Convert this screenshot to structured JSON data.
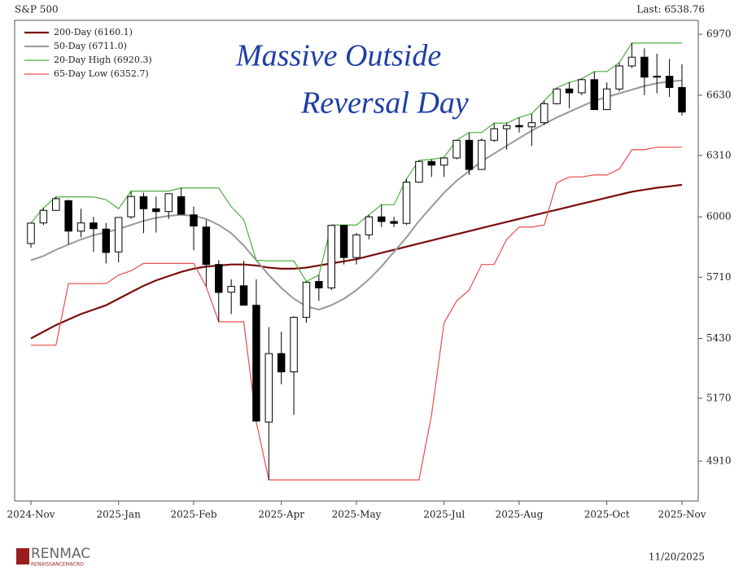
{
  "chart_data": {
    "type": "candlestick",
    "title": "S&P 500",
    "last_label": "Last: 6538.76",
    "log_scale": true,
    "ylim": [
      4752,
      7050
    ],
    "yticks": [
      4910,
      5170,
      5430,
      5710,
      6000,
      6310,
      6630,
      6970
    ],
    "categories": [
      "2024-Nov",
      null,
      null,
      null,
      null,
      null,
      null,
      "2025-Jan",
      null,
      null,
      null,
      null,
      null,
      "2025-Feb",
      null,
      null,
      null,
      null,
      null,
      null,
      "2025-Apr",
      null,
      null,
      null,
      null,
      null,
      "2025-May",
      null,
      null,
      null,
      null,
      null,
      null,
      "2025-Jul",
      null,
      null,
      null,
      null,
      null,
      "2025-Aug",
      null,
      null,
      null,
      null,
      null,
      null,
      "2025-Oct",
      null,
      null,
      null,
      null,
      null,
      "2025-Nov"
    ],
    "open": [
      5870,
      5970,
      6032,
      6080,
      5930,
      5970,
      5940,
      5830,
      6000,
      6100,
      6040,
      6026,
      6100,
      6010,
      5950,
      5770,
      5640,
      5670,
      5580,
      5070,
      5363,
      5283,
      5525,
      5690,
      5660,
      5958,
      5803,
      5912,
      6000,
      5977,
      5968,
      6173,
      6279,
      6260,
      6297,
      6389,
      6238,
      6389,
      6450,
      6467,
      6460,
      6482,
      6584,
      6664,
      6643,
      6715,
      6552,
      6664,
      6791,
      6840,
      6729,
      6734,
      6672
    ],
    "high": [
      5970,
      6044,
      6099,
      6085,
      6040,
      6000,
      5970,
      5997,
      6128,
      6120,
      6100,
      6095,
      6144,
      6050,
      5986,
      5790,
      5700,
      5787,
      5700,
      5481,
      5460,
      5530,
      5690,
      5720,
      5960,
      5960,
      5920,
      6010,
      6060,
      6000,
      6190,
      6285,
      6290,
      6300,
      6390,
      6430,
      6400,
      6480,
      6480,
      6510,
      6530,
      6600,
      6670,
      6700,
      6720,
      6760,
      6700,
      6810,
      6920,
      6890,
      6860,
      6830,
      6800
    ],
    "low": [
      5850,
      5960,
      6030,
      5867,
      5900,
      5830,
      5775,
      5780,
      5990,
      5920,
      5923,
      5990,
      6010,
      5837,
      5666,
      5505,
      5540,
      5580,
      5070,
      4835,
      5230,
      5100,
      5500,
      5600,
      5650,
      5770,
      5770,
      5890,
      5950,
      5950,
      5960,
      6170,
      6200,
      6200,
      6290,
      6210,
      6240,
      6380,
      6340,
      6430,
      6360,
      6470,
      6580,
      6560,
      6630,
      6550,
      6550,
      6650,
      6780,
      6630,
      6640,
      6620,
      6520
    ],
    "close": [
      5969,
      6032,
      6090,
      5930,
      5970,
      5942,
      5827,
      5997,
      6101,
      6040,
      6026,
      6115,
      6013,
      5955,
      5770,
      5639,
      5667,
      5580,
      5074,
      5363,
      5283,
      5525,
      5686,
      5660,
      5958,
      5803,
      5912,
      6000,
      5977,
      5968,
      6173,
      6279,
      6260,
      6297,
      6389,
      6238,
      6389,
      6450,
      6467,
      6460,
      6482,
      6584,
      6664,
      6643,
      6715,
      6552,
      6664,
      6791,
      6840,
      6729,
      6734,
      6672,
      6539
    ],
    "candle_color": "#000000",
    "lines": [
      {
        "name": "200-Day  (6160.1)",
        "color": "#7a0c0c",
        "width": 2.2,
        "values": [
          5430,
          5460,
          5490,
          5515,
          5540,
          5560,
          5580,
          5610,
          5640,
          5670,
          5695,
          5715,
          5735,
          5750,
          5760,
          5765,
          5770,
          5770,
          5765,
          5755,
          5750,
          5750,
          5755,
          5765,
          5775,
          5785,
          5795,
          5810,
          5825,
          5840,
          5855,
          5870,
          5885,
          5900,
          5915,
          5930,
          5945,
          5960,
          5975,
          5990,
          6005,
          6020,
          6035,
          6050,
          6065,
          6080,
          6095,
          6110,
          6125,
          6135,
          6145,
          6152,
          6160
        ]
      },
      {
        "name": "50-Day  (6711.0)",
        "color": "#999999",
        "width": 2,
        "values": [
          5790,
          5810,
          5840,
          5865,
          5890,
          5910,
          5925,
          5940,
          5960,
          5980,
          5995,
          6005,
          6010,
          6005,
          5990,
          5960,
          5920,
          5860,
          5790,
          5720,
          5660,
          5610,
          5575,
          5560,
          5580,
          5610,
          5650,
          5700,
          5760,
          5830,
          5900,
          5980,
          6050,
          6120,
          6180,
          6230,
          6280,
          6320,
          6360,
          6400,
          6440,
          6475,
          6510,
          6540,
          6570,
          6600,
          6620,
          6640,
          6660,
          6680,
          6695,
          6705,
          6711
        ]
      },
      {
        "name": "20-Day High  (6920.3)",
        "color": "#4caf3f",
        "width": 1.2,
        "values": [
          5970,
          6044,
          6099,
          6099,
          6099,
          6099,
          6085,
          6040,
          6128,
          6128,
          6128,
          6128,
          6144,
          6144,
          6144,
          6144,
          6050,
          5986,
          5790,
          5787,
          5787,
          5787,
          5690,
          5720,
          5960,
          5960,
          5960,
          6010,
          6060,
          6060,
          6190,
          6285,
          6290,
          6300,
          6390,
          6430,
          6430,
          6480,
          6480,
          6510,
          6530,
          6600,
          6670,
          6700,
          6720,
          6760,
          6760,
          6810,
          6920,
          6920,
          6920,
          6920,
          6920
        ]
      },
      {
        "name": "65-Day Low  (6352.7)",
        "color": "#f04a4a",
        "width": 1.2,
        "values": [
          5400,
          5400,
          5400,
          5680,
          5680,
          5680,
          5680,
          5720,
          5740,
          5775,
          5775,
          5775,
          5775,
          5775,
          5666,
          5505,
          5505,
          5505,
          5070,
          4835,
          4835,
          4835,
          4835,
          4835,
          4835,
          4835,
          4835,
          4835,
          4835,
          4835,
          4835,
          4835,
          5100,
          5500,
          5600,
          5650,
          5770,
          5770,
          5890,
          5950,
          5950,
          5960,
          6170,
          6200,
          6200,
          6210,
          6210,
          6240,
          6340,
          6340,
          6353,
          6353,
          6353
        ]
      }
    ],
    "annotations": [
      "Massive Outside",
      "Reversal Day"
    ]
  },
  "footer": {
    "logo": "RENMAC",
    "logo_sub": "RENAISSANCEMACRO",
    "date": "11/20/2025"
  }
}
